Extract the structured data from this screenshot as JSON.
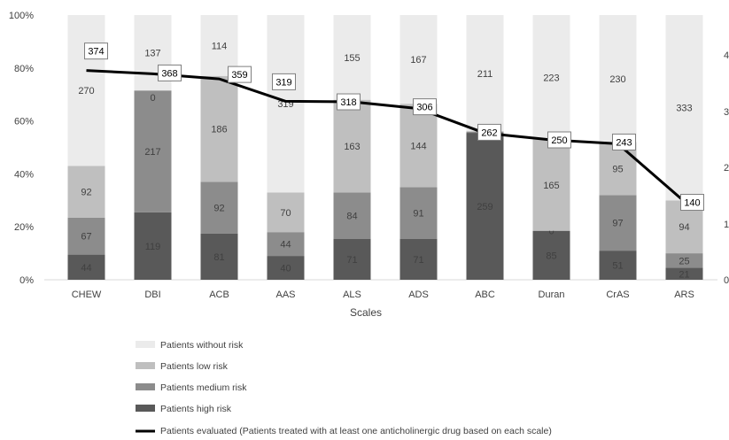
{
  "chart_data": {
    "type": "bar",
    "stacked": true,
    "normalized_percent": true,
    "xlabel": "Scales",
    "categories": [
      "CHEW",
      "DBI",
      "ACB",
      "AAS",
      "ALS",
      "ADS",
      "ABC",
      "Duran",
      "CrAS",
      "ARS"
    ],
    "y_ticks": [
      "0%",
      "20%",
      "40%",
      "60%",
      "80%",
      "100%"
    ],
    "ylim": [
      0,
      100
    ],
    "right_axis_ticks": [
      "0",
      "1",
      "2",
      "3",
      "4"
    ],
    "grid": false,
    "legend_position": "bottom",
    "series": [
      {
        "name": "Patients high risk",
        "color": "#595959",
        "values": [
          44,
          119,
          81,
          40,
          71,
          71,
          259,
          85,
          51,
          21
        ]
      },
      {
        "name": "Patients medium risk",
        "color": "#8c8c8c",
        "values": [
          67,
          217,
          92,
          44,
          84,
          91,
          3,
          0,
          97,
          25
        ]
      },
      {
        "name": "Patients low risk",
        "color": "#bfbfbf",
        "values": [
          92,
          null,
          186,
          70,
          163,
          144,
          0,
          165,
          95,
          94
        ]
      },
      {
        "name": "Patients without risk",
        "color": "#ebebeb",
        "values": [
          270,
          137,
          114,
          319,
          155,
          167,
          211,
          223,
          230,
          333
        ]
      }
    ],
    "segment_labels": [
      [
        "44",
        "119",
        "81",
        "40",
        "71",
        "71",
        "259",
        "85",
        "51",
        "21"
      ],
      [
        "67",
        "217",
        "92",
        "44",
        "84",
        "91",
        "3",
        "0",
        "97",
        "25"
      ],
      [
        "92",
        "",
        "186",
        "70",
        "163",
        "144",
        "0",
        "165",
        "95",
        "94"
      ],
      [
        "270",
        "137",
        "114",
        "319",
        "155",
        "167",
        "211",
        "223",
        "230",
        "333"
      ]
    ],
    "line": {
      "name": "Patients evaluated (Patients treated with at least one anticholinergic drug based on each scale)",
      "color": "#000000",
      "values": [
        374,
        368,
        359,
        319,
        318,
        306,
        262,
        250,
        243,
        140
      ],
      "labels": [
        "374",
        "368",
        "359",
        "319",
        "318",
        "306",
        "262",
        "250",
        "243",
        "140"
      ]
    },
    "dbi_extra_label": "0"
  }
}
